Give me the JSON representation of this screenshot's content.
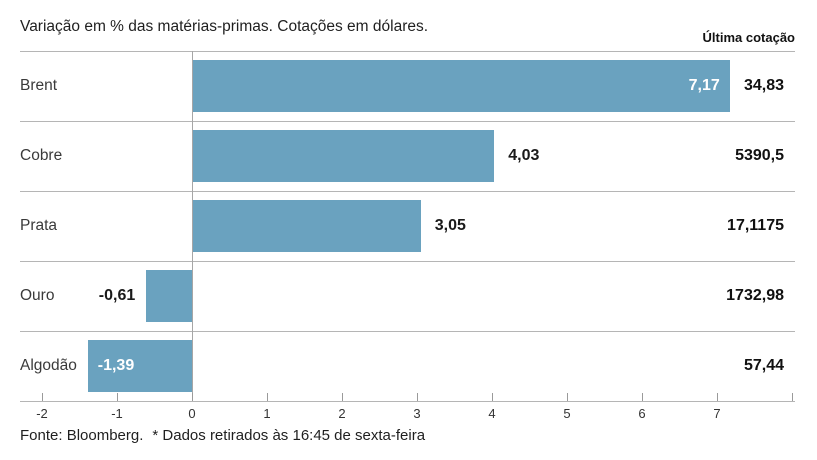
{
  "header": {
    "title": "Variação em % das matérias-primas. Cotações em dólares.",
    "last_quote_label": "Última cotação"
  },
  "chart_data": {
    "type": "bar",
    "orientation": "horizontal",
    "title": "Variação em % das matérias-primas. Cotações em dólares.",
    "categories": [
      "Brent",
      "Cobre",
      "Prata",
      "Ouro",
      "Algodão"
    ],
    "values": [
      7.17,
      4.03,
      3.05,
      -0.61,
      -1.39
    ],
    "value_labels": [
      "7,17",
      "4,03",
      "3,05",
      "-0,61",
      "-1,39"
    ],
    "value_label_inside_bar": [
      true,
      false,
      false,
      false,
      true
    ],
    "last_quote_header": "Última cotação",
    "last_quotes": [
      "34,83",
      "5390,5",
      "17,1175",
      "1732,98",
      "57,44"
    ],
    "xlabel": "",
    "ylabel": "",
    "xlim": [
      -2.3,
      8.05
    ],
    "x_ticks": [
      {
        "value": -2,
        "label": "-2"
      },
      {
        "value": -1,
        "label": "-1"
      },
      {
        "value": 0,
        "label": "0"
      },
      {
        "value": 1,
        "label": "1"
      },
      {
        "value": 2,
        "label": "2"
      },
      {
        "value": 3,
        "label": "3"
      },
      {
        "value": 4,
        "label": "4"
      },
      {
        "value": 5,
        "label": "5"
      },
      {
        "value": 6,
        "label": "6"
      },
      {
        "value": 7,
        "label": "7"
      },
      {
        "value": 8,
        "label": ""
      }
    ],
    "grid": "zero-line-only",
    "legend_position": "none",
    "bar_color": "#6aa2bf"
  },
  "footer": {
    "source": "Fonte: Bloomberg.",
    "note": "* Dados retirados às 16:45 de sexta-feira"
  },
  "colors": {
    "bar": "#6aa2bf",
    "separator": "#b5b5b5",
    "zero_line": "#a6a6a6",
    "axis_line": "#b5b5b5",
    "tick": "#9a9a9a",
    "title_text": "#1f1f1f",
    "category_text": "#3a3a3a",
    "value_inside": "#ffffff",
    "value_outside": "#1a1a1a",
    "quote_text": "#111111"
  }
}
